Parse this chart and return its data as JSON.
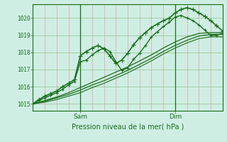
{
  "xlabel": "Pression niveau de la mer( hPa )",
  "bg_color": "#ceeee4",
  "plot_bg_color": "#ceeee4",
  "line_color": "#1a6e1a",
  "grid_color_h": "#99cc99",
  "grid_color_v": "#e8a0a0",
  "ylim": [
    1014.6,
    1020.8
  ],
  "xlim": [
    0,
    96
  ],
  "xticks": [
    24,
    72
  ],
  "xtick_labels": [
    "Sam",
    "Dim"
  ],
  "yticks": [
    1015,
    1016,
    1017,
    1018,
    1019,
    1020
  ],
  "vlines": [
    24,
    72
  ],
  "series": [
    {
      "x": [
        0,
        3,
        6,
        9,
        12,
        15,
        18,
        21,
        24,
        27,
        30,
        33,
        36,
        39,
        42,
        45,
        48,
        51,
        54,
        57,
        60,
        63,
        66,
        69,
        72,
        75,
        78,
        81,
        84,
        87,
        90,
        93,
        96
      ],
      "y": [
        1015.0,
        1015.25,
        1015.45,
        1015.6,
        1015.75,
        1016.0,
        1016.2,
        1016.4,
        1017.8,
        1018.05,
        1018.25,
        1018.4,
        1018.2,
        1017.8,
        1017.35,
        1017.55,
        1017.95,
        1018.45,
        1018.85,
        1019.15,
        1019.45,
        1019.65,
        1019.85,
        1019.98,
        1020.3,
        1020.5,
        1020.6,
        1020.5,
        1020.3,
        1020.1,
        1019.85,
        1019.55,
        1019.25
      ],
      "marker": "+",
      "lw": 1.2,
      "ms": 4
    },
    {
      "x": [
        0,
        3,
        6,
        9,
        12,
        15,
        18,
        21,
        24,
        27,
        30,
        33,
        36,
        39,
        42,
        45,
        48,
        51,
        54,
        57,
        60,
        63,
        66,
        69,
        72,
        75,
        78,
        81,
        84,
        87,
        90,
        93,
        96
      ],
      "y": [
        1015.0,
        1015.2,
        1015.35,
        1015.5,
        1015.65,
        1015.85,
        1016.1,
        1016.3,
        1017.45,
        1017.55,
        1017.85,
        1018.1,
        1018.25,
        1018.05,
        1017.45,
        1016.95,
        1017.1,
        1017.6,
        1017.95,
        1018.4,
        1018.9,
        1019.2,
        1019.5,
        1019.75,
        1020.05,
        1020.15,
        1020.0,
        1019.85,
        1019.6,
        1019.3,
        1019.0,
        1019.0,
        1019.1
      ],
      "marker": "+",
      "lw": 1.0,
      "ms": 3
    },
    {
      "x": [
        0,
        6,
        12,
        18,
        24,
        30,
        36,
        42,
        48,
        54,
        60,
        66,
        72,
        78,
        84,
        90,
        96
      ],
      "y": [
        1015.0,
        1015.15,
        1015.35,
        1015.55,
        1015.8,
        1016.1,
        1016.35,
        1016.65,
        1016.95,
        1017.3,
        1017.65,
        1018.05,
        1018.4,
        1018.7,
        1018.95,
        1019.05,
        1019.05
      ],
      "marker": null,
      "lw": 0.9,
      "ms": 0
    },
    {
      "x": [
        0,
        6,
        12,
        18,
        24,
        30,
        36,
        42,
        48,
        54,
        60,
        66,
        72,
        78,
        84,
        90,
        96
      ],
      "y": [
        1015.0,
        1015.2,
        1015.4,
        1015.65,
        1015.95,
        1016.25,
        1016.55,
        1016.85,
        1017.15,
        1017.5,
        1017.85,
        1018.25,
        1018.6,
        1018.9,
        1019.1,
        1019.15,
        1019.15
      ],
      "marker": null,
      "lw": 0.9,
      "ms": 0
    },
    {
      "x": [
        0,
        6,
        12,
        18,
        24,
        30,
        36,
        42,
        48,
        54,
        60,
        66,
        72,
        78,
        84,
        90,
        96
      ],
      "y": [
        1015.0,
        1015.1,
        1015.25,
        1015.45,
        1015.65,
        1015.95,
        1016.2,
        1016.5,
        1016.8,
        1017.15,
        1017.5,
        1017.9,
        1018.25,
        1018.55,
        1018.8,
        1018.9,
        1018.9
      ],
      "marker": null,
      "lw": 0.8,
      "ms": 0
    }
  ]
}
